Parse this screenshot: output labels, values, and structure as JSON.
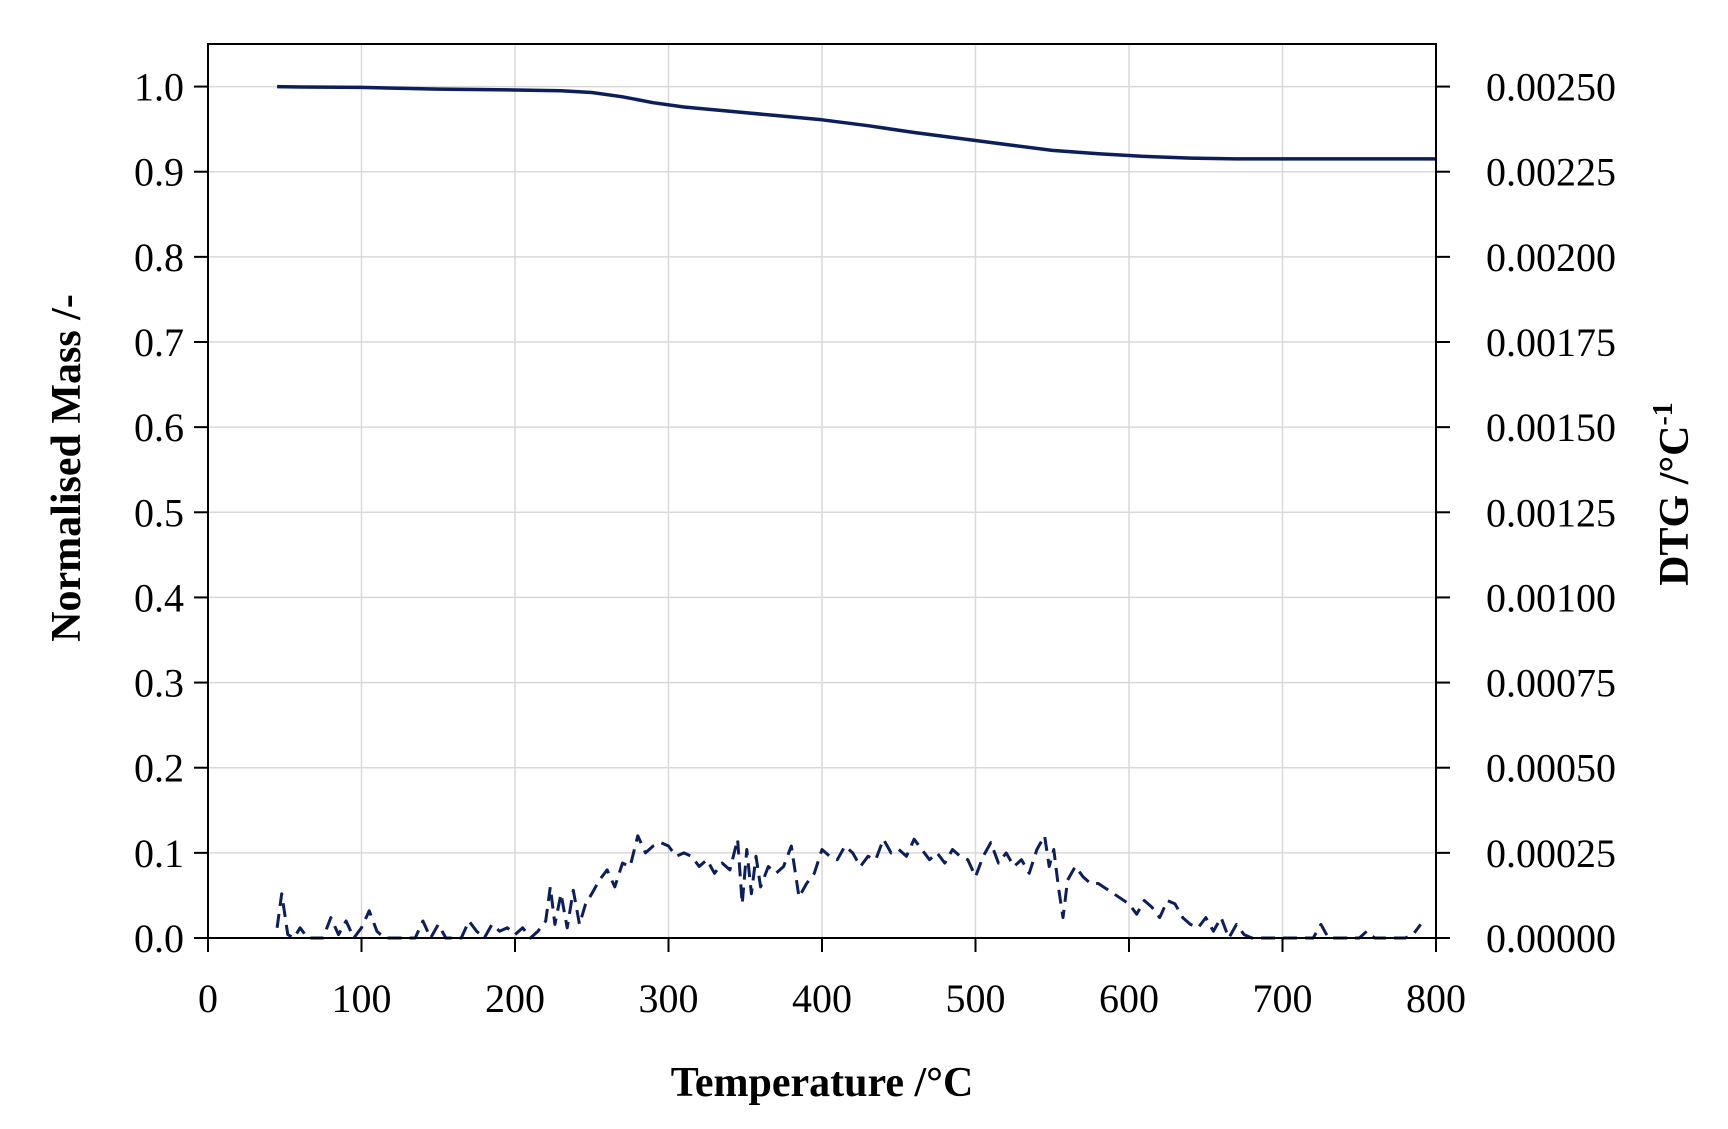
{
  "chart_data": {
    "type": "line",
    "title": "",
    "xlabel": "Temperature /°C",
    "ylabel": "Normalised Mass /-",
    "y2label_main": "DTG /°C",
    "y2label_sup": "-1",
    "xlim": [
      0,
      800
    ],
    "ylim": [
      0,
      1.05
    ],
    "y2lim": [
      0,
      0.002625
    ],
    "xticks": [
      "0",
      "100",
      "200",
      "300",
      "400",
      "500",
      "600",
      "700",
      "800"
    ],
    "yticks": [
      "0.0",
      "0.1",
      "0.2",
      "0.3",
      "0.4",
      "0.5",
      "0.6",
      "0.7",
      "0.8",
      "0.9",
      "1.0"
    ],
    "y2ticks": [
      "0.00000",
      "0.00025",
      "0.00050",
      "0.00075",
      "0.00100",
      "0.00125",
      "0.00150",
      "0.00175",
      "0.00200",
      "0.00225",
      "0.00250"
    ],
    "grid": true,
    "colors": {
      "series": "#0c1f5c",
      "grid": "#d9d9d9"
    },
    "series": [
      {
        "axis": "left",
        "style": "solid",
        "x": [
          45,
          60,
          100,
          150,
          200,
          230,
          250,
          270,
          290,
          310,
          340,
          370,
          400,
          430,
          460,
          490,
          520,
          550,
          580,
          610,
          640,
          670,
          700,
          750,
          800
        ],
        "y": [
          1.0,
          0.9995,
          0.999,
          0.997,
          0.996,
          0.995,
          0.993,
          0.988,
          0.981,
          0.976,
          0.971,
          0.966,
          0.961,
          0.954,
          0.946,
          0.939,
          0.932,
          0.925,
          0.921,
          0.918,
          0.916,
          0.915,
          0.915,
          0.915,
          0.915
        ]
      },
      {
        "axis": "right",
        "style": "dashed",
        "x": [
          45,
          48,
          52,
          56,
          60,
          65,
          70,
          75,
          80,
          85,
          90,
          95,
          100,
          105,
          110,
          115,
          120,
          125,
          130,
          135,
          140,
          145,
          150,
          155,
          160,
          165,
          170,
          175,
          180,
          185,
          190,
          195,
          200,
          205,
          210,
          215,
          220,
          223,
          226,
          230,
          234,
          238,
          242,
          246,
          250,
          255,
          260,
          265,
          270,
          275,
          280,
          285,
          290,
          295,
          300,
          305,
          310,
          315,
          320,
          325,
          330,
          335,
          340,
          345,
          348,
          351,
          354,
          357,
          360,
          365,
          370,
          375,
          380,
          385,
          390,
          395,
          400,
          405,
          410,
          415,
          420,
          425,
          430,
          435,
          440,
          445,
          450,
          455,
          460,
          465,
          470,
          475,
          480,
          485,
          490,
          495,
          500,
          505,
          510,
          515,
          520,
          525,
          530,
          535,
          540,
          545,
          548,
          551,
          554,
          557,
          560,
          565,
          570,
          575,
          580,
          590,
          600,
          605,
          610,
          615,
          620,
          625,
          630,
          635,
          640,
          645,
          650,
          655,
          660,
          665,
          670,
          675,
          680,
          690,
          700,
          710,
          720,
          725,
          730,
          740,
          750,
          755,
          760,
          770,
          780,
          785,
          790
        ],
        "y": [
          3e-05,
          0.00013,
          1e-05,
          0.0,
          3e-05,
          0.0,
          0.0,
          0.0,
          6e-05,
          1e-05,
          5e-05,
          0.0,
          3e-05,
          8e-05,
          2e-05,
          0.0,
          0.0,
          0.0,
          0.0,
          0.0,
          5e-05,
          0.0,
          4e-05,
          0.0,
          0.0,
          0.0,
          5e-05,
          2e-05,
          0.0,
          4e-05,
          2e-05,
          3e-05,
          1e-05,
          3e-05,
          0.0,
          2e-05,
          5e-05,
          0.00015,
          4e-05,
          0.00013,
          3e-05,
          0.00014,
          4e-05,
          0.0001,
          0.00013,
          0.00017,
          0.0002,
          0.00015,
          0.00022,
          0.00021,
          0.0003,
          0.00025,
          0.00027,
          0.00028,
          0.00027,
          0.00024,
          0.00025,
          0.00024,
          0.00021,
          0.00023,
          0.00019,
          0.00022,
          0.0002,
          0.00029,
          0.0001,
          0.00026,
          0.00013,
          0.00024,
          0.00015,
          0.00021,
          0.00019,
          0.00021,
          0.00027,
          0.00012,
          0.00016,
          0.00019,
          0.00026,
          0.00024,
          0.00023,
          0.00027,
          0.00025,
          0.00021,
          0.00024,
          0.00023,
          0.00029,
          0.00025,
          0.00026,
          0.00024,
          0.00029,
          0.00026,
          0.00023,
          0.00025,
          0.00022,
          0.00026,
          0.00024,
          0.00023,
          0.00018,
          0.00024,
          0.00028,
          0.00022,
          0.00025,
          0.00021,
          0.00023,
          0.00019,
          0.00026,
          0.0003,
          0.00021,
          0.00026,
          0.00015,
          6e-05,
          0.00017,
          0.00021,
          0.00018,
          0.00016,
          0.00016,
          0.00013,
          0.0001,
          7e-05,
          0.00011,
          9e-05,
          6e-05,
          0.00011,
          0.0001,
          6e-05,
          4e-05,
          3e-05,
          6e-05,
          2e-05,
          6e-05,
          0.0,
          4e-05,
          1e-05,
          0.0,
          0.0,
          0.0,
          0.0,
          0.0,
          4e-05,
          0.0,
          0.0,
          0.0,
          2e-05,
          0.0,
          0.0,
          0.0,
          1e-05,
          4e-05
        ]
      }
    ]
  }
}
